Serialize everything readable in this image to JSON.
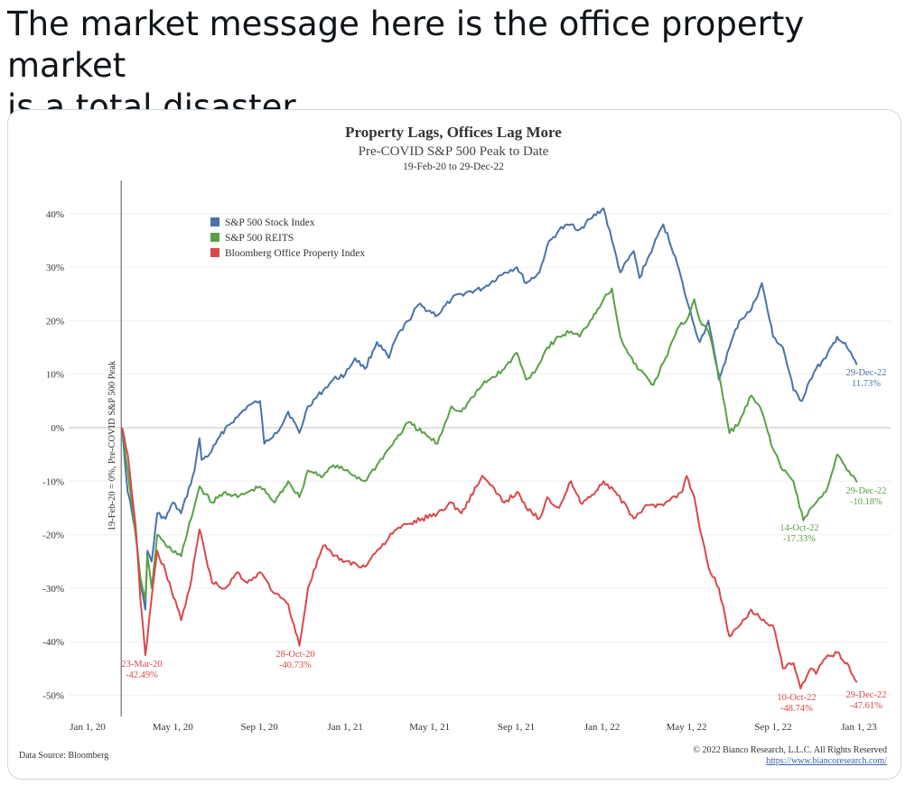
{
  "tweet": {
    "text_line1": "The market message here is the office property market",
    "text_line2": "is a total disaster."
  },
  "chart_data": {
    "type": "line",
    "title": "Property Lags, Offices Lag More",
    "subtitle": "Pre-COVID S&P 500 Peak to Date",
    "date_range": "19-Feb-20 to 29-Dec-22",
    "vertical_marker_label": "19-Feb-20 = 0%, Pre-COVID S&P 500 Peak",
    "x_ticks": [
      "Jan 1, 20",
      "May 1, 20",
      "Sep 1, 20",
      "Jan 1, 21",
      "May 1, 21",
      "Sep 1, 21",
      "Jan 1, 22",
      "May 1, 22",
      "Sep 1, 22",
      "Jan 1, 23"
    ],
    "y_ticks": [
      "40%",
      "30%",
      "20%",
      "10%",
      "0%",
      "-10%",
      "-20%",
      "-30%",
      "-40%",
      "-50%"
    ],
    "ylim": [
      -55,
      43
    ],
    "legend_position": "top-left",
    "series": [
      {
        "name": "S&P 500 Stock Index",
        "color": "#4a72a8",
        "dates": [
          "2020-02-19",
          "2020-02-27",
          "2020-03-09",
          "2020-03-16",
          "2020-03-23",
          "2020-03-26",
          "2020-04-01",
          "2020-04-09",
          "2020-04-21",
          "2020-05-01",
          "2020-05-13",
          "2020-06-01",
          "2020-06-08",
          "2020-06-11",
          "2020-06-22",
          "2020-07-01",
          "2020-07-15",
          "2020-08-01",
          "2020-08-15",
          "2020-09-02",
          "2020-09-08",
          "2020-09-23",
          "2020-10-01",
          "2020-10-12",
          "2020-10-28",
          "2020-11-09",
          "2020-12-01",
          "2020-12-15",
          "2021-01-01",
          "2021-01-15",
          "2021-01-29",
          "2021-02-15",
          "2021-03-04",
          "2021-03-15",
          "2021-04-01",
          "2021-04-15",
          "2021-05-12",
          "2021-06-01",
          "2021-06-15",
          "2021-07-15",
          "2021-08-15",
          "2021-09-02",
          "2021-09-15",
          "2021-10-04",
          "2021-10-15",
          "2021-11-01",
          "2021-11-18",
          "2021-11-30",
          "2021-12-15",
          "2022-01-03",
          "2022-01-15",
          "2022-01-27",
          "2022-02-15",
          "2022-02-23",
          "2022-03-15",
          "2022-03-29",
          "2022-04-15",
          "2022-05-01",
          "2022-05-12",
          "2022-05-20",
          "2022-06-01",
          "2022-06-16",
          "2022-07-01",
          "2022-07-15",
          "2022-08-01",
          "2022-08-16",
          "2022-09-01",
          "2022-09-15",
          "2022-09-30",
          "2022-10-12",
          "2022-10-20",
          "2022-11-01",
          "2022-11-15",
          "2022-12-01",
          "2022-12-15",
          "2022-12-29"
        ],
        "values": [
          0,
          -12,
          -19,
          -29,
          -34,
          -23,
          -25,
          -16,
          -17,
          -14,
          -16,
          -8,
          -2,
          -6,
          -5,
          -3,
          0,
          2,
          4,
          5,
          -3,
          -1,
          0,
          3,
          -1,
          4,
          7,
          9,
          10,
          13,
          11,
          16,
          13,
          17,
          20,
          23,
          21,
          24,
          25,
          26,
          29,
          30,
          27,
          29,
          34,
          37,
          38,
          37,
          39,
          41,
          35,
          29,
          33,
          28,
          34,
          38,
          32,
          24,
          19,
          16,
          20,
          9,
          15,
          20,
          22,
          27,
          17,
          15,
          7,
          5,
          8,
          11,
          13,
          17,
          15,
          11.73
        ],
        "end_label_date": "29-Dec-22",
        "end_label_value": "11.73%"
      },
      {
        "name": "S&P 500 REITS",
        "color": "#5aa046",
        "dates": [
          "2020-02-19",
          "2020-02-27",
          "2020-03-09",
          "2020-03-16",
          "2020-03-23",
          "2020-03-26",
          "2020-04-01",
          "2020-04-09",
          "2020-04-21",
          "2020-05-13",
          "2020-06-08",
          "2020-06-26",
          "2020-07-15",
          "2020-08-01",
          "2020-09-02",
          "2020-09-23",
          "2020-10-12",
          "2020-10-28",
          "2020-11-09",
          "2020-12-01",
          "2020-12-15",
          "2021-01-01",
          "2021-01-29",
          "2021-02-15",
          "2021-03-15",
          "2021-04-01",
          "2021-05-12",
          "2021-06-01",
          "2021-06-15",
          "2021-07-15",
          "2021-08-15",
          "2021-09-02",
          "2021-09-15",
          "2021-09-30",
          "2021-10-15",
          "2021-11-01",
          "2021-11-18",
          "2021-11-30",
          "2021-12-15",
          "2022-01-03",
          "2022-01-15",
          "2022-01-27",
          "2022-02-15",
          "2022-03-15",
          "2022-04-01",
          "2022-04-21",
          "2022-05-01",
          "2022-05-12",
          "2022-05-20",
          "2022-06-01",
          "2022-06-16",
          "2022-07-01",
          "2022-07-15",
          "2022-08-01",
          "2022-08-16",
          "2022-09-01",
          "2022-09-15",
          "2022-09-30",
          "2022-10-14",
          "2022-10-25",
          "2022-11-01",
          "2022-11-15",
          "2022-12-01",
          "2022-12-15",
          "2022-12-29"
        ],
        "values": [
          0,
          -8,
          -20,
          -28,
          -32,
          -24,
          -30,
          -20,
          -22,
          -24,
          -11,
          -14,
          -12,
          -13,
          -11,
          -14,
          -10,
          -13,
          -8,
          -9,
          -7,
          -8,
          -10,
          -7,
          -2,
          1,
          -3,
          4,
          3,
          8,
          11,
          14,
          9,
          11,
          15,
          17,
          18,
          17,
          20,
          24,
          26,
          17,
          12,
          8,
          13,
          19,
          20,
          24,
          20,
          18,
          10,
          -1,
          1,
          6,
          3,
          -4,
          -8,
          -10,
          -17.33,
          -15,
          -14,
          -12,
          -5,
          -8,
          -10.18
        ],
        "annotation_date": "14-Oct-22",
        "annotation_value": "-17.33%",
        "end_label_date": "29-Dec-22",
        "end_label_value": "-10.18%"
      },
      {
        "name": "Bloomberg Office Property Index",
        "color": "#d9484a",
        "dates": [
          "2020-02-19",
          "2020-02-27",
          "2020-03-09",
          "2020-03-16",
          "2020-03-23",
          "2020-03-31",
          "2020-04-09",
          "2020-04-21",
          "2020-05-13",
          "2020-05-25",
          "2020-06-08",
          "2020-06-26",
          "2020-07-15",
          "2020-08-01",
          "2020-08-15",
          "2020-09-02",
          "2020-09-23",
          "2020-10-12",
          "2020-10-28",
          "2020-11-09",
          "2020-12-01",
          "2020-12-15",
          "2021-01-01",
          "2021-01-29",
          "2021-02-15",
          "2021-03-15",
          "2021-04-01",
          "2021-05-12",
          "2021-06-01",
          "2021-06-15",
          "2021-07-15",
          "2021-08-15",
          "2021-09-02",
          "2021-09-15",
          "2021-10-04",
          "2021-10-15",
          "2021-11-01",
          "2021-11-18",
          "2021-12-01",
          "2021-12-15",
          "2022-01-03",
          "2022-01-20",
          "2022-02-15",
          "2022-03-01",
          "2022-04-01",
          "2022-04-25",
          "2022-05-01",
          "2022-05-12",
          "2022-05-20",
          "2022-06-01",
          "2022-06-16",
          "2022-07-01",
          "2022-07-15",
          "2022-08-01",
          "2022-08-16",
          "2022-09-01",
          "2022-09-15",
          "2022-09-30",
          "2022-10-10",
          "2022-10-25",
          "2022-11-01",
          "2022-11-15",
          "2022-12-01",
          "2022-12-15",
          "2022-12-29"
        ],
        "values": [
          0,
          -5,
          -18,
          -32,
          -42.49,
          -33,
          -23,
          -27,
          -36,
          -30,
          -19,
          -29,
          -30,
          -27,
          -29,
          -27,
          -31,
          -33,
          -40.73,
          -30,
          -22,
          -24,
          -25,
          -26,
          -23,
          -19,
          -18,
          -16,
          -14,
          -16,
          -9,
          -14,
          -12,
          -15,
          -17,
          -13,
          -15,
          -10,
          -14,
          -13,
          -10,
          -12,
          -17,
          -15,
          -14,
          -12,
          -9,
          -13,
          -19,
          -26,
          -30,
          -39,
          -37,
          -34,
          -36,
          -37,
          -45,
          -44,
          -48.74,
          -45,
          -46,
          -43,
          -42,
          -44,
          -47.61
        ],
        "annotation_date": "10-Oct-22",
        "annotation_value": "-48.74%",
        "end_label_date": "29-Dec-22",
        "end_label_value": "-47.61%"
      }
    ],
    "annotations_early": [
      {
        "series": "Bloomberg Office Property Index",
        "date": "23-Mar-20",
        "value": "-42.49%"
      },
      {
        "series": "Bloomberg Office Property Index",
        "date": "28-Oct-20",
        "value": "-40.73%"
      }
    ],
    "source_left": "Data Source: Bloomberg",
    "copyright": "© 2022 Bianco Research, L.L.C. All Rights Reserved",
    "website": "https://www.biancoresearch.com/"
  }
}
